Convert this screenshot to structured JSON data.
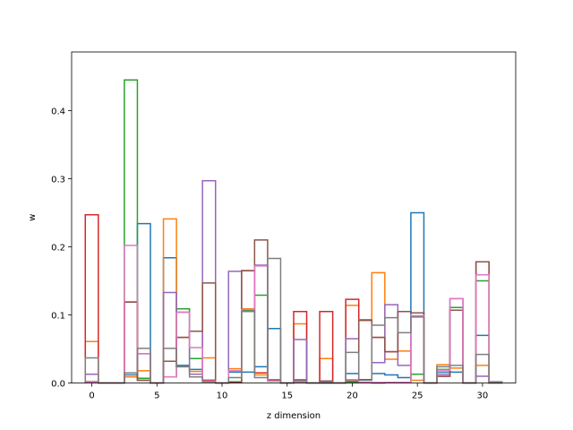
{
  "chart_data": {
    "type": "step",
    "xlabel": "z dimension",
    "ylabel": "w",
    "xlim": [
      -1.55,
      32.55
    ],
    "ylim": [
      0,
      0.4861
    ],
    "xticks": [
      0,
      5,
      10,
      15,
      20,
      25,
      30
    ],
    "yticks": [
      0.0,
      0.1,
      0.2,
      0.3,
      0.4
    ],
    "x": [
      0,
      1,
      2,
      3,
      4,
      5,
      6,
      7,
      8,
      9,
      10,
      11,
      12,
      13,
      14,
      15,
      16,
      17,
      18,
      19,
      20,
      21,
      22,
      23,
      24,
      25,
      26,
      27,
      28,
      29,
      30,
      31
    ],
    "series": [
      {
        "color": "#1f77b4",
        "values": [
          0.001,
          0,
          0,
          0.012,
          0.234,
          0,
          0.184,
          0.026,
          0.02,
          0.003,
          0,
          0.016,
          0.016,
          0.024,
          0.08,
          0,
          0.003,
          0,
          0,
          0,
          0.014,
          0.005,
          0.014,
          0.012,
          0.008,
          0.25,
          0,
          0.016,
          0.016,
          0,
          0.07,
          0
        ]
      },
      {
        "color": "#ff7f0e",
        "values": [
          0.061,
          0,
          0,
          0.009,
          0.018,
          0,
          0.241,
          0.024,
          0.017,
          0.037,
          0,
          0.021,
          0.109,
          0.012,
          0.005,
          0,
          0.087,
          0,
          0.036,
          0,
          0.114,
          0.092,
          0.162,
          0.035,
          0.047,
          0.004,
          0,
          0.027,
          0.022,
          0,
          0.026,
          0
        ]
      },
      {
        "color": "#2ca02c",
        "values": [
          0.001,
          0,
          0,
          0.445,
          0.007,
          0,
          0.009,
          0.109,
          0.036,
          0.004,
          0,
          0.002,
          0.107,
          0.129,
          0.003,
          0,
          0.001,
          0,
          0,
          0,
          0.001,
          0.001,
          0,
          0.001,
          0.001,
          0.013,
          0,
          0.02,
          0.111,
          0,
          0.15,
          0
        ]
      },
      {
        "color": "#d62728",
        "values": [
          0.247,
          0,
          0,
          0.119,
          0.004,
          0,
          0.032,
          0.067,
          0.076,
          0.004,
          0,
          0.001,
          0.165,
          0.015,
          0.004,
          0,
          0.105,
          0,
          0.105,
          0,
          0.123,
          0.005,
          0.067,
          0.046,
          0.105,
          0.103,
          0,
          0.01,
          0.107,
          0,
          0.178,
          0
        ]
      },
      {
        "color": "#9467bd",
        "values": [
          0.013,
          0,
          0,
          0.015,
          0.043,
          0,
          0.133,
          0.104,
          0.013,
          0.297,
          0,
          0.164,
          0.105,
          0.173,
          0.004,
          0,
          0.064,
          0,
          0.003,
          0,
          0.065,
          0.093,
          0.03,
          0.115,
          0.026,
          0.098,
          0,
          0.013,
          0.124,
          0,
          0.01,
          0
        ]
      },
      {
        "color": "#8c564b",
        "values": [
          0.002,
          0,
          0,
          0.119,
          0.004,
          0,
          0.032,
          0.067,
          0.076,
          0.147,
          0,
          0.001,
          0.165,
          0.21,
          0.004,
          0,
          0.003,
          0,
          0.003,
          0,
          0.003,
          0.092,
          0.067,
          0.046,
          0.105,
          0.103,
          0,
          0.01,
          0.107,
          0,
          0.178,
          0
        ]
      },
      {
        "color": "#e377c2",
        "values": [
          0.001,
          0,
          0,
          0.202,
          0.043,
          0,
          0.009,
          0.104,
          0.052,
          0.003,
          0,
          0.018,
          0.108,
          0.172,
          0.003,
          0,
          0.002,
          0,
          0.001,
          0,
          0.005,
          0.001,
          0.001,
          0.001,
          0.001,
          0.099,
          0,
          0.019,
          0.124,
          0,
          0.159,
          0
        ]
      },
      {
        "color": "#7f7f7f",
        "values": [
          0.037,
          0,
          0,
          0.015,
          0.051,
          0,
          0.051,
          0.024,
          0.009,
          0.002,
          0,
          0.008,
          0.105,
          0.008,
          0.183,
          0,
          0.005,
          0,
          0.001,
          0,
          0.045,
          0.004,
          0.085,
          0.096,
          0.074,
          0.097,
          0,
          0.024,
          0.026,
          0,
          0.042,
          0.002
        ]
      }
    ]
  }
}
